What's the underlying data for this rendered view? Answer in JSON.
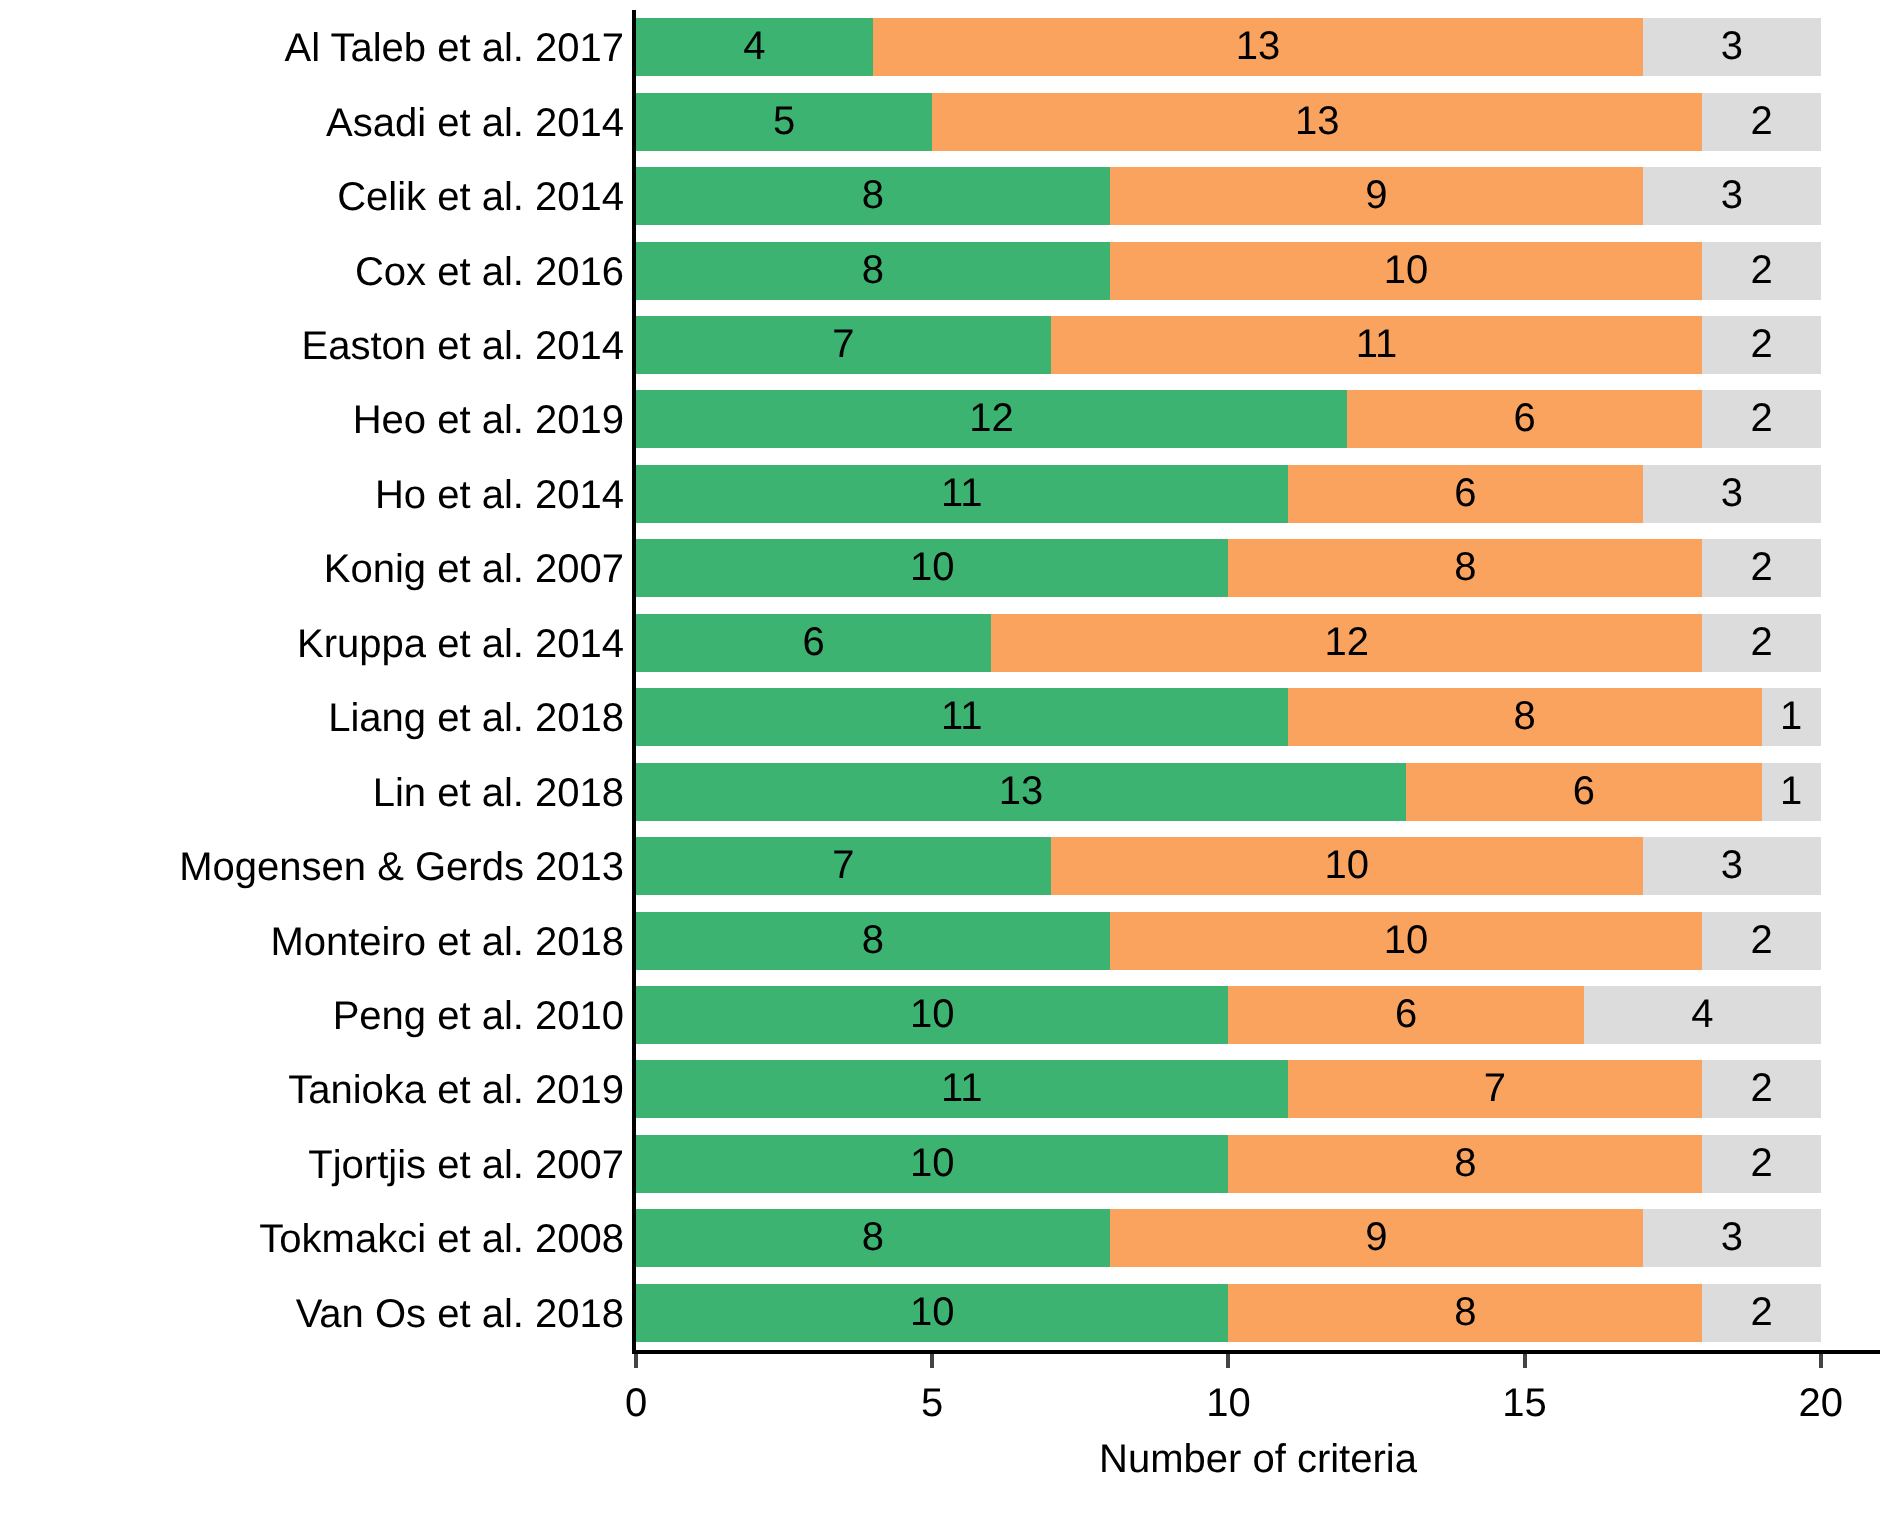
{
  "chart_data": {
    "type": "bar",
    "orientation": "horizontal",
    "stacked": true,
    "data_labels": true,
    "xlabel": "Number of criteria",
    "xlim": [
      0,
      21
    ],
    "xticks": [
      0,
      5,
      10,
      15,
      20
    ],
    "categories": [
      "Al Taleb et al. 2017",
      "Asadi et al. 2014",
      "Celik et al. 2014",
      "Cox et al. 2016",
      "Easton et al. 2014",
      "Heo et al. 2019",
      "Ho et al. 2014",
      "Konig et al. 2007",
      "Kruppa et al. 2014",
      "Liang et al. 2018",
      "Lin et al. 2018",
      "Mogensen & Gerds 2013",
      "Monteiro et al. 2018",
      "Peng et al. 2010",
      "Tanioka et al. 2019",
      "Tjortjis et al. 2007",
      "Tokmakci et al. 2008",
      "Van Os et al. 2018"
    ],
    "series": [
      {
        "color": "#3cb371",
        "values": [
          4,
          5,
          8,
          8,
          7,
          12,
          11,
          10,
          6,
          11,
          13,
          7,
          8,
          10,
          11,
          10,
          8,
          10
        ]
      },
      {
        "color": "#f9a35f",
        "values": [
          13,
          13,
          9,
          10,
          11,
          6,
          6,
          8,
          12,
          8,
          6,
          10,
          10,
          6,
          7,
          8,
          9,
          8
        ]
      },
      {
        "color": "#dcdcdc",
        "values": [
          3,
          2,
          3,
          2,
          2,
          2,
          3,
          2,
          2,
          1,
          1,
          3,
          2,
          4,
          2,
          2,
          3,
          2
        ]
      }
    ]
  }
}
